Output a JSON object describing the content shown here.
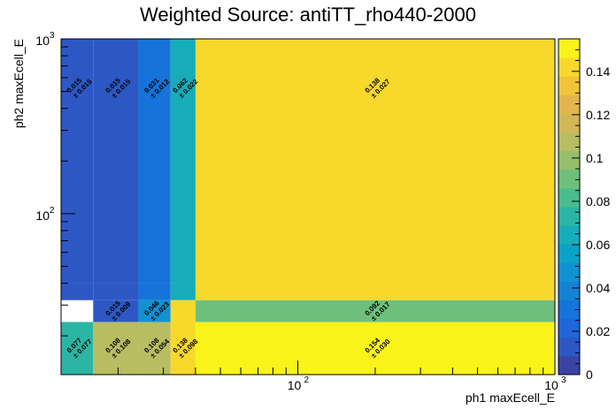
{
  "chart_data": {
    "type": "heatmap",
    "title": "Weighted Source: antiTT_rho440-2000",
    "xlabel": "ph1 maxEcell_E",
    "ylabel": "ph2 maxEcell_E",
    "x_scale": "log",
    "y_scale": "log",
    "xlim": [
      12,
      1000
    ],
    "ylim": [
      12,
      1000
    ],
    "x_edges": [
      12,
      16,
      24,
      32,
      40,
      1000
    ],
    "y_edges": [
      12,
      24,
      32,
      40,
      1000
    ],
    "x_tick_labels": [
      {
        "base": "10",
        "exp": "2",
        "value": 100
      },
      {
        "base": "10",
        "exp": "3",
        "value": 1000
      }
    ],
    "y_tick_labels": [
      {
        "base": "10",
        "exp": "2",
        "value": 100
      },
      {
        "base": "10",
        "exp": "3",
        "value": 1000
      }
    ],
    "cells": [
      {
        "xi": 0,
        "yi": 0,
        "value": 0.077,
        "value_label": "0.077",
        "error_label": "± 0.077"
      },
      {
        "xi": 1,
        "yi": 0,
        "value": 0.108,
        "value_label": "0.108",
        "error_label": "± 0.108"
      },
      {
        "xi": 2,
        "yi": 0,
        "value": 0.108,
        "value_label": "0.108",
        "error_label": "± 0.054"
      },
      {
        "xi": 3,
        "yi": 0,
        "value": 0.138,
        "value_label": "0.138",
        "error_label": "± 0.098"
      },
      {
        "xi": 4,
        "yi": 0,
        "value": 0.154,
        "value_label": "0.154",
        "error_label": "± 0.030"
      },
      {
        "xi": 1,
        "yi": 1,
        "value": 0.015,
        "value_label": "0.015",
        "error_label": "± 0.009"
      },
      {
        "xi": 2,
        "yi": 1,
        "value": 0.046,
        "value_label": "0.046",
        "error_label": "± 0.023"
      },
      {
        "xi": 4,
        "yi": 1,
        "value": 0.092,
        "value_label": "0.092",
        "error_label": "± 0.017"
      },
      {
        "xi": 0,
        "yi": 2,
        "value": 0.015,
        "value_label": "",
        "error_label": ""
      },
      {
        "xi": 1,
        "yi": 2,
        "value": 0.015,
        "value_label": "",
        "error_label": ""
      },
      {
        "xi": 2,
        "yi": 2,
        "value": 0.031,
        "value_label": "",
        "error_label": ""
      },
      {
        "xi": 3,
        "yi": 2,
        "value": 0.062,
        "value_label": "",
        "error_label": ""
      },
      {
        "xi": 3,
        "yi": 1,
        "value": 0.138,
        "value_label": "",
        "error_label": ""
      },
      {
        "xi": 4,
        "yi": 2,
        "value": 0.138,
        "value_label": "",
        "error_label": ""
      },
      {
        "xi": 0,
        "yi": 3,
        "value": 0.015,
        "value_label": "0.015",
        "error_label": "± 0.015"
      },
      {
        "xi": 1,
        "yi": 3,
        "value": 0.015,
        "value_label": "0.015",
        "error_label": "± 0.015"
      },
      {
        "xi": 2,
        "yi": 3,
        "value": 0.031,
        "value_label": "0.031",
        "error_label": "± 0.012"
      },
      {
        "xi": 3,
        "yi": 3,
        "value": 0.062,
        "value_label": "0.062",
        "error_label": "± 0.022"
      },
      {
        "xi": 4,
        "yi": 3,
        "value": 0.138,
        "value_label": "0.138",
        "error_label": "± 0.027"
      }
    ],
    "colorbar": {
      "min": 0,
      "max": 0.155,
      "tick_labels": [
        "0",
        "0.02",
        "0.04",
        "0.06",
        "0.08",
        "0.1",
        "0.12",
        "0.14"
      ],
      "tick_values": [
        0,
        0.02,
        0.04,
        0.06,
        0.08,
        0.1,
        0.12,
        0.14
      ]
    },
    "palette": [
      "#3a43a4",
      "#2d58c4",
      "#1f66d9",
      "#1573d9",
      "#1582d6",
      "#1092d2",
      "#0aa2c6",
      "#16acb8",
      "#2cb5a4",
      "#4abc8e",
      "#6fbf7c",
      "#95bf6d",
      "#b8bd62",
      "#d2b759",
      "#e3b54f",
      "#f1c43a",
      "#f8d82a",
      "#f9f31a"
    ]
  }
}
